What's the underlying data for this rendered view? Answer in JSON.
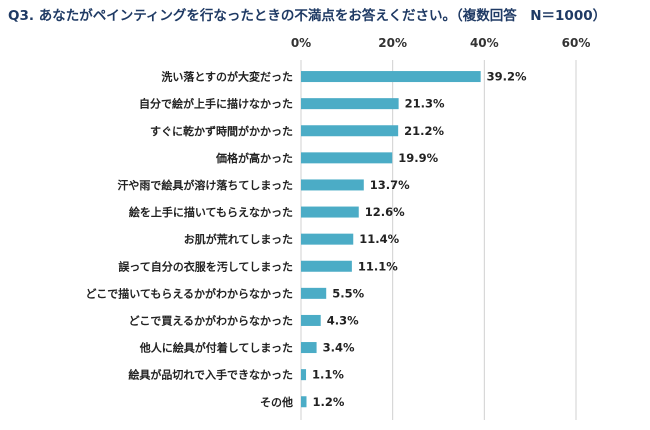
{
  "title": "Q3. あなたがペインティングを行なったときの不満点をお答えください。（複数回答　N＝1000）",
  "colors": {
    "bar": "#4bacc6",
    "grid": "#d0d0d0",
    "title": "#1f3a64"
  },
  "chart_data": {
    "type": "bar",
    "orientation": "horizontal",
    "categories": [
      "洗い落とすのが大変だった",
      "自分で絵が上手に描けなかった",
      "すぐに乾かず時間がかかった",
      "価格が高かった",
      "汗や雨で絵具が溶け落ちてしまった",
      "絵を上手に描いてもらえなかった",
      "お肌が荒れてしまった",
      "誤って自分の衣服を汚してしまった",
      "どこで描いてもらえるかがわからなかった",
      "どこで買えるかがわからなかった",
      "他人に絵具が付着してしまった",
      "絵具が品切れで入手できなかった",
      "その他"
    ],
    "values": [
      39.2,
      21.3,
      21.2,
      19.9,
      13.7,
      12.6,
      11.4,
      11.1,
      5.5,
      4.3,
      3.4,
      1.1,
      1.2
    ],
    "value_labels": [
      "39.2%",
      "21.3%",
      "21.2%",
      "19.9%",
      "13.7%",
      "12.6%",
      "11.4%",
      "11.1%",
      "5.5%",
      "4.3%",
      "3.4%",
      "1.1%",
      "1.2%"
    ],
    "xlim": [
      0,
      60
    ],
    "ticks": [
      0,
      20,
      40,
      60
    ],
    "tick_labels": [
      "0%",
      "20%",
      "40%",
      "60%"
    ],
    "grid": true
  }
}
